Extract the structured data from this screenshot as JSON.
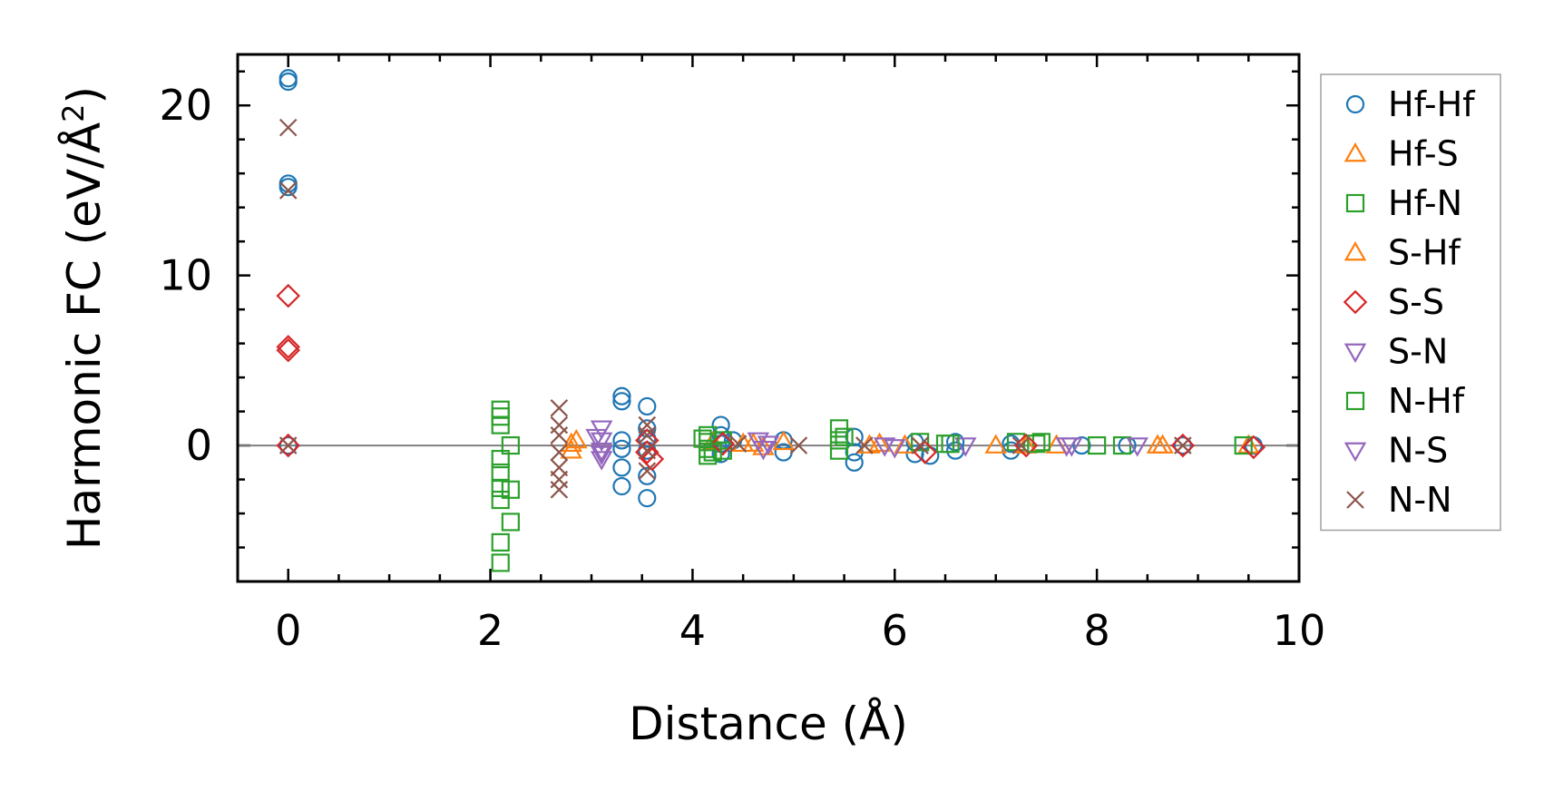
{
  "chart_data": {
    "type": "scatter",
    "xlabel": "Distance (Å)",
    "ylabel": "Harmonic FC (eV/Å²)",
    "ylabel_parts": {
      "main": "Harmonic FC (eV/Å",
      "sup": "2",
      "close": ")"
    },
    "xlim": [
      -0.5,
      10
    ],
    "ylim": [
      -8,
      23
    ],
    "xticks": [
      0,
      2,
      4,
      6,
      8,
      10
    ],
    "yticks": [
      0,
      10,
      20
    ],
    "grid": false,
    "legend_position": "right outside",
    "zero_line": 0,
    "series": [
      {
        "name": "Hf-Hf",
        "marker": "circle",
        "color": "#1f77b4",
        "points": [
          [
            0,
            21.6
          ],
          [
            0,
            21.4
          ],
          [
            0,
            15.4
          ],
          [
            0,
            15.2
          ],
          [
            0,
            0
          ],
          [
            3.3,
            2.9
          ],
          [
            3.3,
            2.6
          ],
          [
            3.3,
            0.3
          ],
          [
            3.3,
            -0.2
          ],
          [
            3.3,
            -1.3
          ],
          [
            3.3,
            -2.4
          ],
          [
            3.55,
            2.3
          ],
          [
            3.55,
            1.0
          ],
          [
            3.55,
            0.4
          ],
          [
            3.55,
            -0.3
          ],
          [
            3.55,
            -1.8
          ],
          [
            3.55,
            -3.1
          ],
          [
            4.28,
            1.2
          ],
          [
            4.28,
            0.6
          ],
          [
            4.28,
            0.1
          ],
          [
            4.28,
            -0.5
          ],
          [
            4.4,
            0.3
          ],
          [
            4.9,
            0.3
          ],
          [
            4.9,
            -0.4
          ],
          [
            5.6,
            0.5
          ],
          [
            5.6,
            -0.4
          ],
          [
            5.6,
            -1.0
          ],
          [
            6.2,
            0.2
          ],
          [
            6.2,
            -0.5
          ],
          [
            6.35,
            -0.6
          ],
          [
            6.6,
            0.2
          ],
          [
            6.6,
            -0.3
          ],
          [
            7.15,
            0.1
          ],
          [
            7.15,
            -0.3
          ],
          [
            7.85,
            0
          ],
          [
            8.3,
            0
          ],
          [
            8.85,
            0
          ],
          [
            9.55,
            0
          ]
        ]
      },
      {
        "name": "Hf-S",
        "marker": "triangle-up",
        "color": "#ff7f0e",
        "points": [
          [
            2.8,
            0.1
          ],
          [
            2.8,
            -0.3
          ],
          [
            4.2,
            0.2
          ],
          [
            4.5,
            0.1
          ],
          [
            4.7,
            -0.1
          ],
          [
            4.9,
            0.2
          ],
          [
            5.75,
            0
          ],
          [
            6.1,
            0
          ],
          [
            7.0,
            0
          ],
          [
            7.6,
            0
          ],
          [
            8.65,
            0
          ],
          [
            9.5,
            0
          ]
        ]
      },
      {
        "name": "Hf-N",
        "marker": "square",
        "color": "#2ca02c",
        "points": [
          [
            2.1,
            2.1
          ],
          [
            2.1,
            1.7
          ],
          [
            2.1,
            1.2
          ],
          [
            2.1,
            -0.8
          ],
          [
            2.1,
            -1.6
          ],
          [
            2.1,
            -2.5
          ],
          [
            2.1,
            -3.2
          ],
          [
            2.1,
            -5.7
          ],
          [
            2.1,
            -6.9
          ],
          [
            2.2,
            0
          ],
          [
            2.2,
            -2.6
          ],
          [
            2.2,
            -4.5
          ],
          [
            4.15,
            0.6
          ],
          [
            4.15,
            0.2
          ],
          [
            4.15,
            -0.2
          ],
          [
            4.15,
            -0.6
          ],
          [
            4.3,
            0.3
          ],
          [
            4.3,
            -0.3
          ],
          [
            5.45,
            1.0
          ],
          [
            5.45,
            0.3
          ],
          [
            5.45,
            -0.3
          ],
          [
            6.25,
            0.2
          ],
          [
            6.5,
            0.1
          ],
          [
            7.2,
            0.2
          ],
          [
            7.45,
            0.2
          ],
          [
            8.0,
            0
          ],
          [
            8.25,
            0
          ],
          [
            9.45,
            0
          ]
        ]
      },
      {
        "name": "S-Hf",
        "marker": "triangle-up",
        "color": "#ff7f0e",
        "points": [
          [
            2.85,
            0.3
          ],
          [
            4.6,
            0.1
          ],
          [
            5.85,
            0.1
          ],
          [
            7.3,
            0
          ],
          [
            8.6,
            0
          ]
        ]
      },
      {
        "name": "S-S",
        "marker": "diamond",
        "color": "#d62728",
        "points": [
          [
            0,
            8.8
          ],
          [
            0,
            5.8
          ],
          [
            0,
            5.6
          ],
          [
            0,
            0
          ],
          [
            3.55,
            0.3
          ],
          [
            3.55,
            -0.4
          ],
          [
            3.6,
            -0.8
          ],
          [
            4.3,
            0.1
          ],
          [
            6.3,
            -0.4
          ],
          [
            7.3,
            0
          ],
          [
            8.85,
            0
          ],
          [
            9.55,
            -0.1
          ]
        ]
      },
      {
        "name": "S-N",
        "marker": "triangle-down",
        "color": "#9467bd",
        "points": [
          [
            3.1,
            1.0
          ],
          [
            3.1,
            0.3
          ],
          [
            3.1,
            -0.3
          ],
          [
            3.1,
            -0.8
          ],
          [
            4.65,
            0.3
          ],
          [
            4.7,
            -0.2
          ],
          [
            5.9,
            0
          ],
          [
            6.7,
            0
          ],
          [
            7.75,
            0
          ],
          [
            8.4,
            0
          ]
        ]
      },
      {
        "name": "N-Hf",
        "marker": "square",
        "color": "#2ca02c",
        "points": [
          [
            4.1,
            0.4
          ],
          [
            4.2,
            -0.4
          ],
          [
            5.5,
            0.5
          ],
          [
            6.55,
            0.1
          ],
          [
            7.4,
            0.1
          ]
        ]
      },
      {
        "name": "N-S",
        "marker": "triangle-down",
        "color": "#9467bd",
        "points": [
          [
            3.05,
            0.5
          ],
          [
            3.1,
            -0.5
          ],
          [
            4.75,
            0.1
          ],
          [
            6.0,
            -0.1
          ],
          [
            7.7,
            0
          ]
        ]
      },
      {
        "name": "N-N",
        "marker": "x",
        "color": "#8c564b",
        "points": [
          [
            0,
            18.7
          ],
          [
            0,
            15.0
          ],
          [
            0,
            0
          ],
          [
            2.68,
            2.2
          ],
          [
            2.68,
            1.2
          ],
          [
            2.68,
            0.6
          ],
          [
            2.68,
            -0.4
          ],
          [
            2.68,
            -1.3
          ],
          [
            2.68,
            -2.0
          ],
          [
            2.68,
            -2.6
          ],
          [
            3.55,
            1.2
          ],
          [
            3.55,
            0.6
          ],
          [
            3.55,
            -0.3
          ],
          [
            3.55,
            -1.5
          ],
          [
            4.45,
            0.1
          ],
          [
            5.05,
            0
          ],
          [
            5.7,
            0
          ],
          [
            6.25,
            0
          ],
          [
            7.25,
            0
          ],
          [
            8.85,
            0
          ]
        ]
      }
    ]
  }
}
